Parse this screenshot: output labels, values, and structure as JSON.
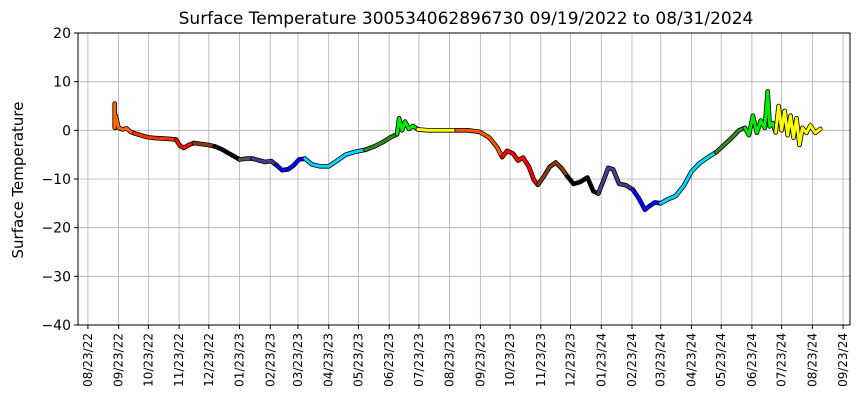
{
  "chart_data": {
    "type": "line",
    "title": "Surface Temperature 300534062896730  09/19/2022 to 08/31/2024",
    "xlabel": "",
    "ylabel": "Surface Temperature",
    "ylim": [
      -40,
      20
    ],
    "yticks": [
      "20",
      "10",
      "0",
      "−10",
      "−20",
      "−30",
      "−40"
    ],
    "ytick_values": [
      20,
      10,
      0,
      -10,
      -20,
      -30,
      -40
    ],
    "xlim": [
      "2022-08-13",
      "2024-09-30"
    ],
    "xticks": [
      "08/23/22",
      "09/23/22",
      "10/23/22",
      "11/23/22",
      "12/23/22",
      "01/23/23",
      "02/23/23",
      "03/23/23",
      "04/23/23",
      "05/23/23",
      "06/23/23",
      "07/23/23",
      "08/23/23",
      "09/23/23",
      "10/23/23",
      "11/23/23",
      "12/23/23",
      "01/23/24",
      "02/23/24",
      "03/23/24",
      "04/23/24",
      "05/23/24",
      "06/23/24",
      "07/23/24",
      "08/23/24",
      "09/23/24"
    ],
    "xtick_dates": [
      "2022-08-23",
      "2022-09-23",
      "2022-10-23",
      "2022-11-23",
      "2022-12-23",
      "2023-01-23",
      "2023-02-23",
      "2023-03-23",
      "2023-04-23",
      "2023-05-23",
      "2023-06-23",
      "2023-07-23",
      "2023-08-23",
      "2023-09-23",
      "2023-10-23",
      "2023-11-23",
      "2023-12-23",
      "2024-01-23",
      "2024-02-23",
      "2024-03-23",
      "2024-04-23",
      "2024-05-23",
      "2024-06-23",
      "2024-07-23",
      "2024-08-23",
      "2024-09-23"
    ],
    "grid": true,
    "segments": [
      {
        "color": "#ff6600",
        "points": [
          [
            "2022-09-19",
            5.5
          ],
          [
            "2022-09-19",
            0.5
          ],
          [
            "2022-09-20",
            3.0
          ],
          [
            "2022-09-23",
            0.5
          ],
          [
            "2022-09-27",
            0.2
          ],
          [
            "2022-10-01",
            0.4
          ],
          [
            "2022-10-05",
            -0.3
          ],
          [
            "2022-10-09",
            -0.6
          ]
        ]
      },
      {
        "color": "#ff3300",
        "points": [
          [
            "2022-10-09",
            -0.6
          ],
          [
            "2022-10-15",
            -1.0
          ],
          [
            "2022-10-22",
            -1.4
          ],
          [
            "2022-10-30",
            -1.6
          ],
          [
            "2022-11-08",
            -1.7
          ],
          [
            "2022-11-15",
            -1.8
          ],
          [
            "2022-11-20",
            -1.9
          ]
        ]
      },
      {
        "color": "#ee1100",
        "points": [
          [
            "2022-11-20",
            -1.9
          ],
          [
            "2022-11-24",
            -3.2
          ],
          [
            "2022-11-28",
            -3.6
          ],
          [
            "2022-12-03",
            -3.0
          ],
          [
            "2022-12-08",
            -2.6
          ]
        ]
      },
      {
        "color": "#8b3a0f",
        "points": [
          [
            "2022-12-08",
            -2.6
          ],
          [
            "2022-12-15",
            -2.8
          ],
          [
            "2022-12-22",
            -3.0
          ],
          [
            "2022-12-29",
            -3.3
          ]
        ]
      },
      {
        "color": "#000000",
        "points": [
          [
            "2022-12-29",
            -3.3
          ],
          [
            "2023-01-05",
            -3.9
          ],
          [
            "2023-01-12",
            -4.7
          ],
          [
            "2023-01-18",
            -5.4
          ],
          [
            "2023-01-23",
            -6.0
          ]
        ]
      },
      {
        "color": "#555555",
        "points": [
          [
            "2023-01-23",
            -6.0
          ],
          [
            "2023-01-30",
            -5.8
          ],
          [
            "2023-02-05",
            -5.8
          ]
        ]
      },
      {
        "color": "#483d8b",
        "points": [
          [
            "2023-02-05",
            -5.8
          ],
          [
            "2023-02-12",
            -6.2
          ],
          [
            "2023-02-18",
            -6.5
          ],
          [
            "2023-02-24",
            -6.3
          ],
          [
            "2023-03-01",
            -7.1
          ]
        ]
      },
      {
        "color": "#0000ff",
        "points": [
          [
            "2023-03-01",
            -7.1
          ],
          [
            "2023-03-07",
            -8.2
          ],
          [
            "2023-03-13",
            -8.0
          ],
          [
            "2023-03-18",
            -7.3
          ],
          [
            "2023-03-24",
            -6.0
          ],
          [
            "2023-03-30",
            -5.8
          ]
        ]
      },
      {
        "color": "#00d8ff",
        "points": [
          [
            "2023-03-30",
            -5.8
          ],
          [
            "2023-04-06",
            -7.0
          ],
          [
            "2023-04-14",
            -7.4
          ],
          [
            "2023-04-23",
            -7.4
          ],
          [
            "2023-05-01",
            -6.3
          ],
          [
            "2023-05-10",
            -5.0
          ],
          [
            "2023-05-20",
            -4.4
          ],
          [
            "2023-05-30",
            -4.0
          ]
        ]
      },
      {
        "color": "#2e8b22",
        "points": [
          [
            "2023-05-30",
            -4.0
          ],
          [
            "2023-06-08",
            -3.3
          ],
          [
            "2023-06-16",
            -2.5
          ],
          [
            "2023-06-24",
            -1.5
          ],
          [
            "2023-07-01",
            -0.8
          ]
        ]
      },
      {
        "color": "#00ee00",
        "points": [
          [
            "2023-07-01",
            -0.8
          ],
          [
            "2023-07-03",
            2.5
          ],
          [
            "2023-07-06",
            0.0
          ],
          [
            "2023-07-09",
            1.8
          ],
          [
            "2023-07-13",
            0.3
          ],
          [
            "2023-07-17",
            0.9
          ],
          [
            "2023-07-22",
            0.2
          ]
        ]
      },
      {
        "color": "#ffff00",
        "points": [
          [
            "2023-07-22",
            0.2
          ],
          [
            "2023-08-01",
            0.0
          ],
          [
            "2023-08-15",
            0.0
          ],
          [
            "2023-08-30",
            0.0
          ]
        ]
      },
      {
        "color": "#ff5500",
        "points": [
          [
            "2023-08-30",
            0.0
          ],
          [
            "2023-09-10",
            0.0
          ],
          [
            "2023-09-22",
            -0.3
          ],
          [
            "2023-10-02",
            -1.5
          ],
          [
            "2023-10-10",
            -3.5
          ],
          [
            "2023-10-15",
            -5.5
          ]
        ]
      },
      {
        "color": "#ff0000",
        "points": [
          [
            "2023-10-15",
            -5.5
          ],
          [
            "2023-10-20",
            -4.2
          ],
          [
            "2023-10-26",
            -4.8
          ],
          [
            "2023-10-31",
            -6.2
          ],
          [
            "2023-11-05",
            -5.6
          ],
          [
            "2023-11-11",
            -7.5
          ],
          [
            "2023-11-16",
            -10.2
          ],
          [
            "2023-11-20",
            -11.2
          ]
        ]
      },
      {
        "color": "#8b3a0f",
        "points": [
          [
            "2023-11-20",
            -11.2
          ],
          [
            "2023-11-26",
            -9.5
          ],
          [
            "2023-12-02",
            -7.5
          ],
          [
            "2023-12-08",
            -6.6
          ],
          [
            "2023-12-14",
            -7.8
          ],
          [
            "2023-12-20",
            -9.5
          ]
        ]
      },
      {
        "color": "#000000",
        "points": [
          [
            "2023-12-20",
            -9.5
          ],
          [
            "2023-12-26",
            -11.0
          ],
          [
            "2024-01-02",
            -10.6
          ],
          [
            "2024-01-09",
            -9.7
          ],
          [
            "2024-01-15",
            -12.5
          ],
          [
            "2024-01-20",
            -13.0
          ]
        ]
      },
      {
        "color": "#483d8b",
        "points": [
          [
            "2024-01-20",
            -13.0
          ],
          [
            "2024-01-25",
            -10.5
          ],
          [
            "2024-01-30",
            -7.7
          ],
          [
            "2024-02-04",
            -8.0
          ],
          [
            "2024-02-10",
            -11.0
          ],
          [
            "2024-02-17",
            -11.3
          ],
          [
            "2024-02-24",
            -12.2
          ]
        ]
      },
      {
        "color": "#0000ff",
        "points": [
          [
            "2024-02-24",
            -12.2
          ],
          [
            "2024-03-01",
            -14.0
          ],
          [
            "2024-03-07",
            -16.3
          ],
          [
            "2024-03-12",
            -15.5
          ],
          [
            "2024-03-17",
            -14.8
          ],
          [
            "2024-03-23",
            -15.0
          ]
        ]
      },
      {
        "color": "#00d8ff",
        "points": [
          [
            "2024-03-23",
            -15.0
          ],
          [
            "2024-03-30",
            -14.2
          ],
          [
            "2024-04-07",
            -13.5
          ],
          [
            "2024-04-15",
            -11.5
          ],
          [
            "2024-04-23",
            -8.5
          ],
          [
            "2024-05-01",
            -6.8
          ],
          [
            "2024-05-10",
            -5.5
          ],
          [
            "2024-05-18",
            -4.5
          ]
        ]
      },
      {
        "color": "#2e8b22",
        "points": [
          [
            "2024-05-18",
            -4.5
          ],
          [
            "2024-05-26",
            -3.0
          ],
          [
            "2024-06-03",
            -1.5
          ],
          [
            "2024-06-10",
            0.0
          ],
          [
            "2024-06-16",
            0.5
          ]
        ]
      },
      {
        "color": "#00ee00",
        "points": [
          [
            "2024-06-16",
            0.5
          ],
          [
            "2024-06-20",
            -1.0
          ],
          [
            "2024-06-24",
            3.0
          ],
          [
            "2024-06-28",
            -0.5
          ],
          [
            "2024-07-02",
            2.0
          ],
          [
            "2024-07-06",
            0.5
          ],
          [
            "2024-07-09",
            8.0
          ],
          [
            "2024-07-11",
            0.8
          ],
          [
            "2024-07-14",
            1.5
          ],
          [
            "2024-07-17",
            -0.4
          ]
        ]
      },
      {
        "color": "#ffff00",
        "points": [
          [
            "2024-07-17",
            -0.4
          ],
          [
            "2024-07-20",
            5.0
          ],
          [
            "2024-07-23",
            0.0
          ],
          [
            "2024-07-26",
            4.0
          ],
          [
            "2024-07-29",
            -1.0
          ],
          [
            "2024-08-01",
            3.0
          ],
          [
            "2024-08-04",
            -1.5
          ],
          [
            "2024-08-07",
            2.5
          ],
          [
            "2024-08-10",
            -3.0
          ],
          [
            "2024-08-13",
            0.5
          ],
          [
            "2024-08-17",
            -0.5
          ],
          [
            "2024-08-21",
            1.0
          ],
          [
            "2024-08-26",
            -0.5
          ],
          [
            "2024-08-31",
            0.3
          ]
        ]
      }
    ]
  }
}
